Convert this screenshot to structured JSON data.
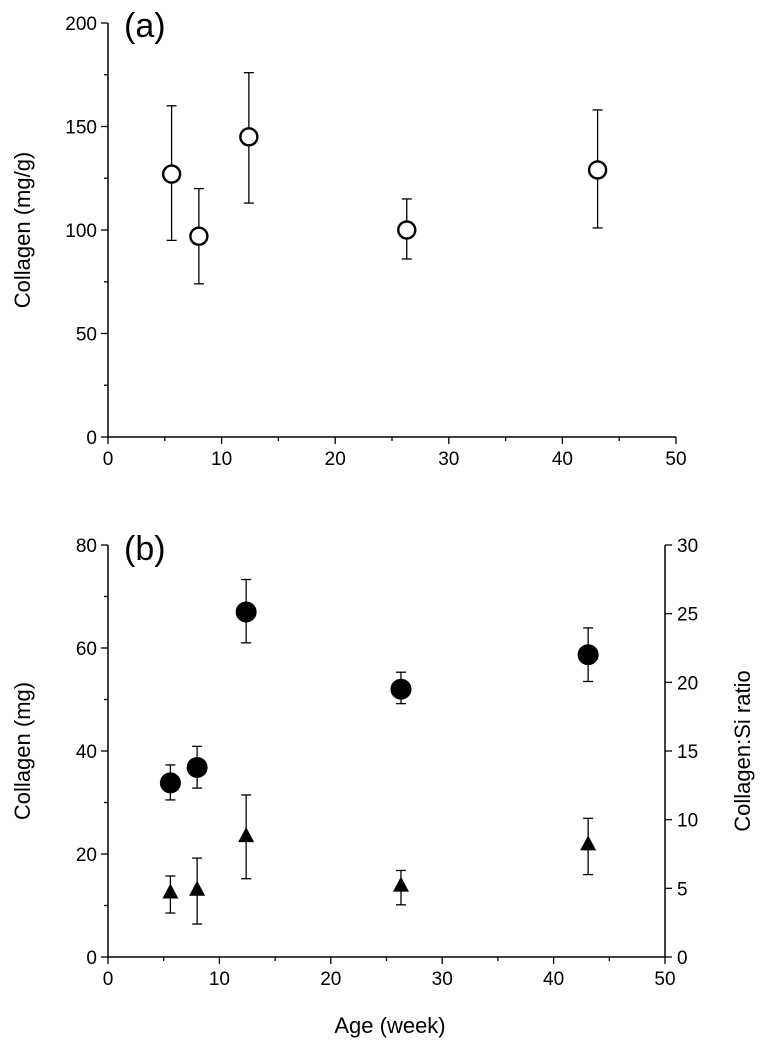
{
  "chart_data": [
    {
      "panel": "(a)",
      "type": "scatter",
      "ylabel": "Collagen (mg/g)",
      "xlim": [
        0,
        50
      ],
      "ylim": [
        0,
        200
      ],
      "xticks": [
        0,
        10,
        20,
        30,
        40,
        50
      ],
      "yticks": [
        0,
        50,
        100,
        150,
        200
      ],
      "series": [
        {
          "name": "Collagen (mg/g)",
          "marker": "open-circle",
          "x": [
            5.6,
            8.0,
            12.4,
            26.3,
            43.1
          ],
          "y": [
            127,
            97,
            145,
            100,
            129
          ],
          "err_lo": [
            95,
            74,
            113,
            86,
            101
          ],
          "err_hi": [
            160,
            120,
            176,
            115,
            158
          ]
        }
      ]
    },
    {
      "panel": "(b)",
      "type": "scatter",
      "xlabel": "Age (week)",
      "ylabel": "Collagen (mg)",
      "y2label": "Collagen:Si ratio",
      "xlim": [
        0,
        50
      ],
      "ylim": [
        0,
        80
      ],
      "y2lim": [
        0,
        30
      ],
      "xticks": [
        0,
        10,
        20,
        30,
        40,
        50
      ],
      "yticks": [
        0,
        20,
        40,
        60,
        80
      ],
      "y2ticks": [
        0,
        5,
        10,
        15,
        20,
        25,
        30
      ],
      "series": [
        {
          "name": "Collagen (mg)",
          "marker": "filled-circle",
          "axis": "left",
          "x": [
            5.6,
            8.0,
            12.4,
            26.3,
            43.1
          ],
          "y": [
            33.8,
            36.8,
            67.0,
            52.0,
            58.7
          ],
          "err_lo": [
            30.5,
            32.8,
            61.0,
            49.2,
            53.5
          ],
          "err_hi": [
            37.3,
            40.9,
            73.3,
            55.3,
            63.9
          ]
        },
        {
          "name": "Collagen:Si ratio",
          "marker": "filled-triangle",
          "axis": "right",
          "x": [
            5.6,
            8.0,
            12.4,
            26.3,
            43.1
          ],
          "y": [
            4.7,
            4.9,
            8.8,
            5.2,
            8.2
          ],
          "err_lo": [
            3.2,
            2.4,
            5.7,
            3.8,
            6.0
          ],
          "err_hi": [
            5.9,
            7.2,
            11.8,
            6.3,
            10.1
          ]
        }
      ]
    }
  ]
}
